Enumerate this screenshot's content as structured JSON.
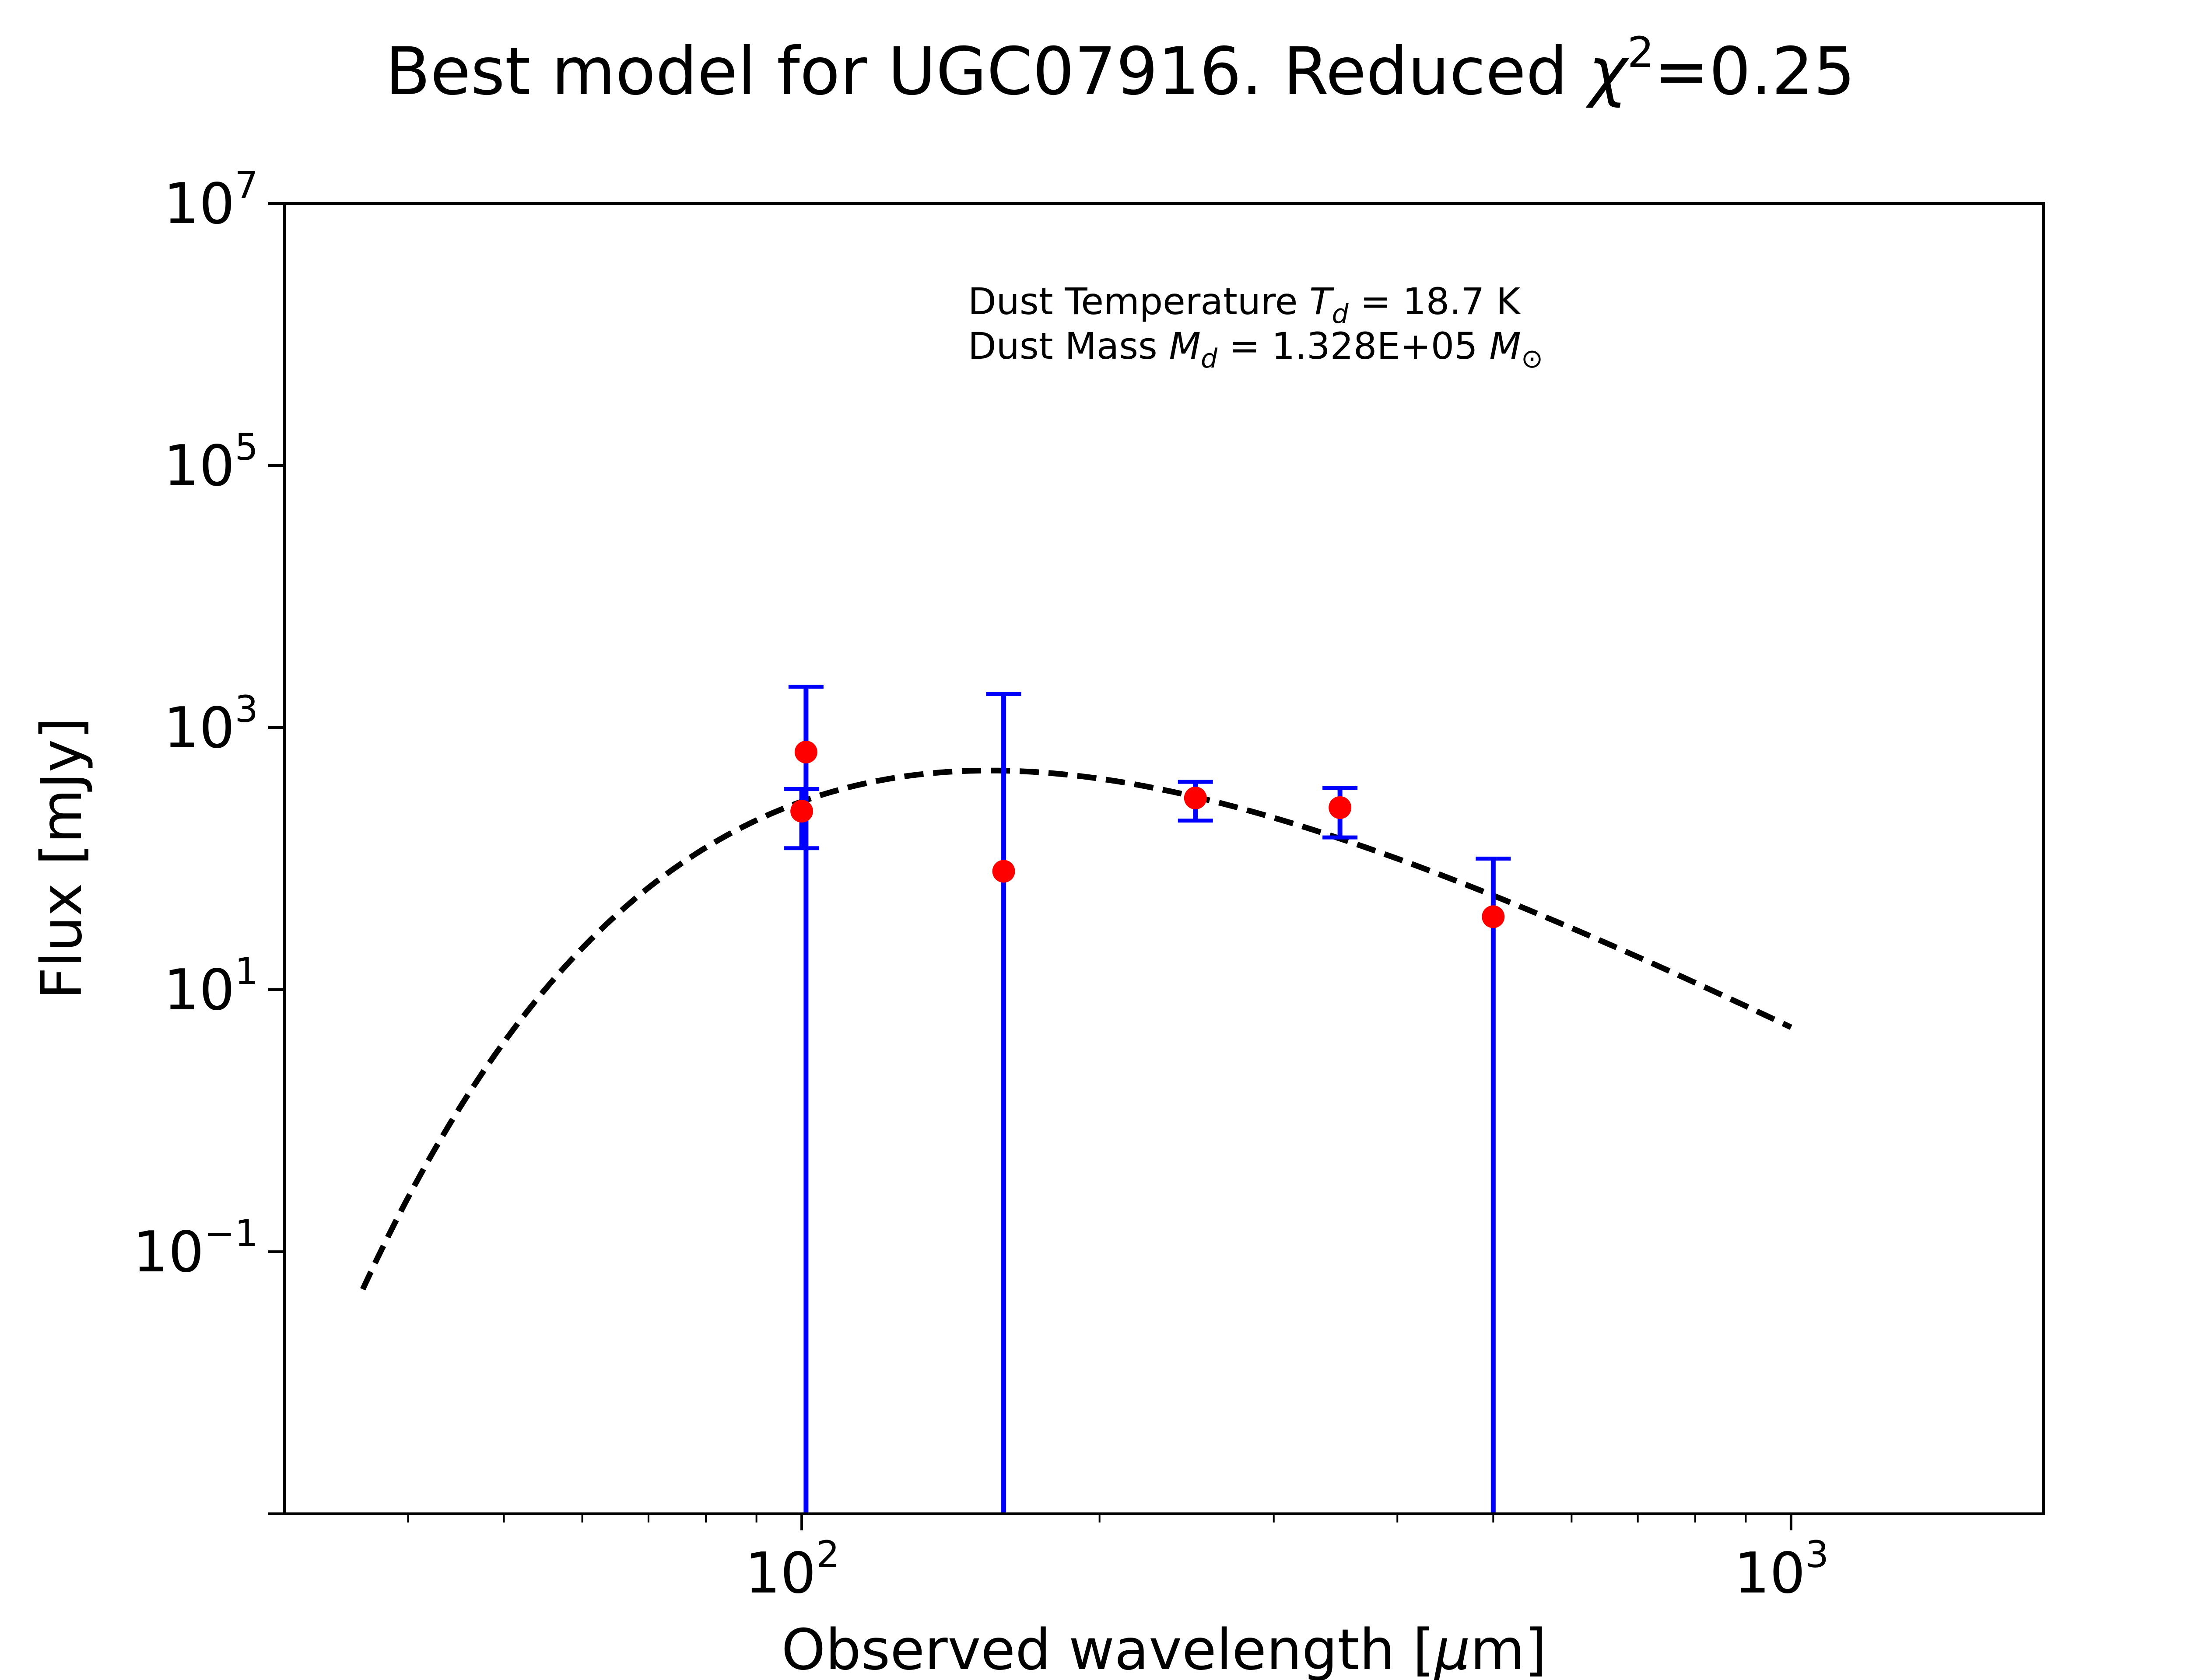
{
  "chart_data": {
    "type": "scatter",
    "title_main": "Best model for UGC07916. Reduced ",
    "title_chi": "χ",
    "title_exp": "2",
    "title_value": "=0.25",
    "xlabel_pre": "Observed wavelength [",
    "xlabel_mu": "μ",
    "xlabel_post": "m]",
    "ylabel": "Flux [mJy]",
    "x_scale": "log",
    "y_scale": "log",
    "xlim": [
      30,
      1800
    ],
    "ylim": [
      0.001,
      10000000
    ],
    "grid": false,
    "x_ticks": [
      {
        "base": "10",
        "exp": "2",
        "value": 100
      },
      {
        "base": "10",
        "exp": "3",
        "value": 1000
      }
    ],
    "y_ticks": [
      {
        "base": "10",
        "exp": "7",
        "value": 10000000
      },
      {
        "base": "10",
        "exp": "5",
        "value": 100000
      },
      {
        "base": "10",
        "exp": "3",
        "value": 1000
      },
      {
        "base": "10",
        "exp": "1",
        "value": 10
      },
      {
        "base": "10",
        "exp": "−1",
        "value": 0.1
      }
    ],
    "annotation": {
      "line1_text": "Dust Temperature ",
      "line1_var": "T",
      "line1_sub": "d",
      "line1_value": " = 18.7 K",
      "line2_text": "Dust Mass ",
      "line2_var": "M",
      "line2_sub": "d",
      "line2_value": " = 1.328E+05 ",
      "line2_unit_var": "M",
      "line2_unit_sub": "⊙"
    },
    "series": [
      {
        "kind": "errorbar",
        "color": "#0000ff",
        "marker_color": "#ff0000",
        "points": [
          {
            "x": 100,
            "y": 230,
            "low": 120,
            "high": 340
          },
          {
            "x": 101,
            "y": 650,
            "low": 0.001,
            "high": 2050
          },
          {
            "x": 160,
            "y": 80,
            "low": 0.001,
            "high": 1800
          },
          {
            "x": 250,
            "y": 290,
            "low": 195,
            "high": 385
          },
          {
            "x": 350,
            "y": 245,
            "low": 145,
            "high": 345
          },
          {
            "x": 500,
            "y": 36,
            "low": 0.001,
            "high": 100
          }
        ]
      },
      {
        "kind": "model",
        "style": "dashed",
        "color": "#000000",
        "temperature_K": 18.7,
        "beta": 2.0,
        "x_range": [
          36,
          1000
        ],
        "peak_flux": 470
      }
    ]
  }
}
